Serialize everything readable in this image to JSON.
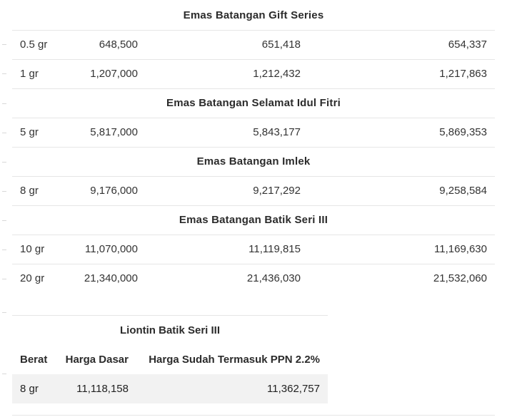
{
  "main_table": {
    "sections": [
      {
        "title": "Emas Batangan Gift Series",
        "rows": [
          {
            "weight": "0.5 gr",
            "v1": "648,500",
            "v2": "651,418",
            "v3": "654,337"
          },
          {
            "weight": "1 gr",
            "v1": "1,207,000",
            "v2": "1,212,432",
            "v3": "1,217,863"
          }
        ]
      },
      {
        "title": "Emas Batangan Selamat Idul Fitri",
        "rows": [
          {
            "weight": "5 gr",
            "v1": "5,817,000",
            "v2": "5,843,177",
            "v3": "5,869,353"
          }
        ]
      },
      {
        "title": "Emas Batangan Imlek",
        "rows": [
          {
            "weight": "8 gr",
            "v1": "9,176,000",
            "v2": "9,217,292",
            "v3": "9,258,584"
          }
        ]
      },
      {
        "title": "Emas Batangan Batik Seri III",
        "rows": [
          {
            "weight": "10 gr",
            "v1": "11,070,000",
            "v2": "11,119,815",
            "v3": "11,169,630"
          },
          {
            "weight": "20 gr",
            "v1": "21,340,000",
            "v2": "21,436,030",
            "v3": "21,532,060"
          }
        ]
      }
    ]
  },
  "small_table": {
    "title": "Liontin Batik Seri III",
    "headers": [
      "Berat",
      "Harga Dasar",
      "Harga Sudah Termasuk PPN 2.2%"
    ],
    "rows": [
      {
        "c1": "8 gr",
        "c2": "11,118,158",
        "c3": "11,362,757"
      }
    ]
  }
}
